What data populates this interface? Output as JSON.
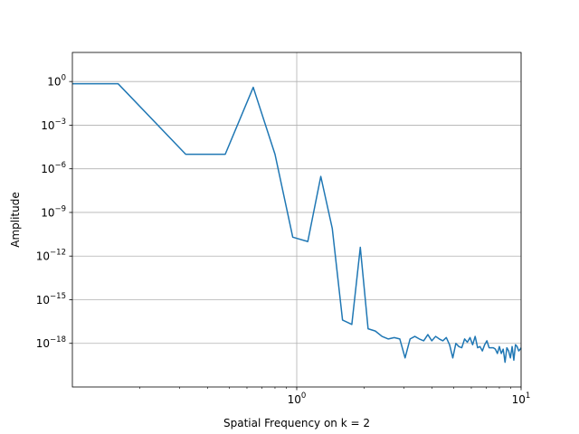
{
  "chart_data": {
    "type": "line",
    "title": "",
    "xlabel": "Spatial Frequency on k = 2",
    "ylabel": "Amplitude",
    "xscale": "log",
    "yscale": "log",
    "xlim": [
      0.1,
      10
    ],
    "ylim": [
      1e-21,
      100.0
    ],
    "grid": true,
    "legend": "none",
    "line_color": "#1f77b4",
    "x_ticks": [
      {
        "value": 1,
        "base": "10",
        "exp": "0"
      },
      {
        "value": 10,
        "base": "10",
        "exp": "1"
      }
    ],
    "y_ticks": [
      {
        "value": 1,
        "base": "10",
        "exp": "0"
      },
      {
        "value": 0.001,
        "base": "10",
        "exp": "−3"
      },
      {
        "value": 1e-06,
        "base": "10",
        "exp": "−6"
      },
      {
        "value": 1e-09,
        "base": "10",
        "exp": "−9"
      },
      {
        "value": 1e-12,
        "base": "10",
        "exp": "−12"
      },
      {
        "value": 1e-15,
        "base": "10",
        "exp": "−15"
      },
      {
        "value": 1e-18,
        "base": "10",
        "exp": "−18"
      }
    ],
    "series": [
      {
        "x": [
          0.1,
          0.16,
          0.32,
          0.48,
          0.64,
          0.8,
          0.96,
          1.12,
          1.28,
          1.44,
          1.6,
          1.76,
          1.92,
          2.08,
          2.24,
          2.4,
          2.56,
          2.72,
          2.88,
          3.04,
          3.2,
          3.36,
          3.52,
          3.68,
          3.84,
          4.0,
          4.16,
          4.32,
          4.48,
          4.64,
          4.8,
          4.96,
          5.12,
          5.28,
          5.44,
          5.6,
          5.76,
          5.92,
          6.08,
          6.24,
          6.4,
          6.56,
          6.72,
          6.88,
          7.04,
          7.2,
          7.36,
          7.52,
          7.68,
          7.84,
          8.0,
          8.16,
          8.32,
          8.48,
          8.64,
          8.8,
          8.96,
          9.12,
          9.28,
          9.44,
          9.6,
          9.76,
          9.92,
          10.0
        ],
        "y": [
          0.7,
          0.7,
          1e-05,
          1e-05,
          0.4,
          1e-05,
          2e-11,
          1e-11,
          3e-07,
          8e-11,
          4e-17,
          2e-17,
          4e-12,
          1e-17,
          7e-18,
          3e-18,
          2e-18,
          2.5e-18,
          2e-18,
          1e-19,
          2e-18,
          3e-18,
          2e-18,
          1.5e-18,
          4e-18,
          1.5e-18,
          3e-18,
          2e-18,
          1.5e-18,
          2.5e-18,
          8e-19,
          1e-19,
          1e-18,
          6e-19,
          5e-19,
          2e-18,
          1.2e-18,
          2.5e-18,
          8e-19,
          3e-18,
          5e-19,
          6e-19,
          3e-19,
          8e-19,
          1.5e-18,
          5e-19,
          5e-19,
          5e-19,
          4e-19,
          2e-19,
          6e-19,
          2e-19,
          4e-19,
          5e-20,
          5e-19,
          3e-19,
          1e-19,
          6e-19,
          7e-20,
          8e-19,
          6e-19,
          3e-19,
          4e-19,
          5e-19
        ]
      }
    ]
  }
}
